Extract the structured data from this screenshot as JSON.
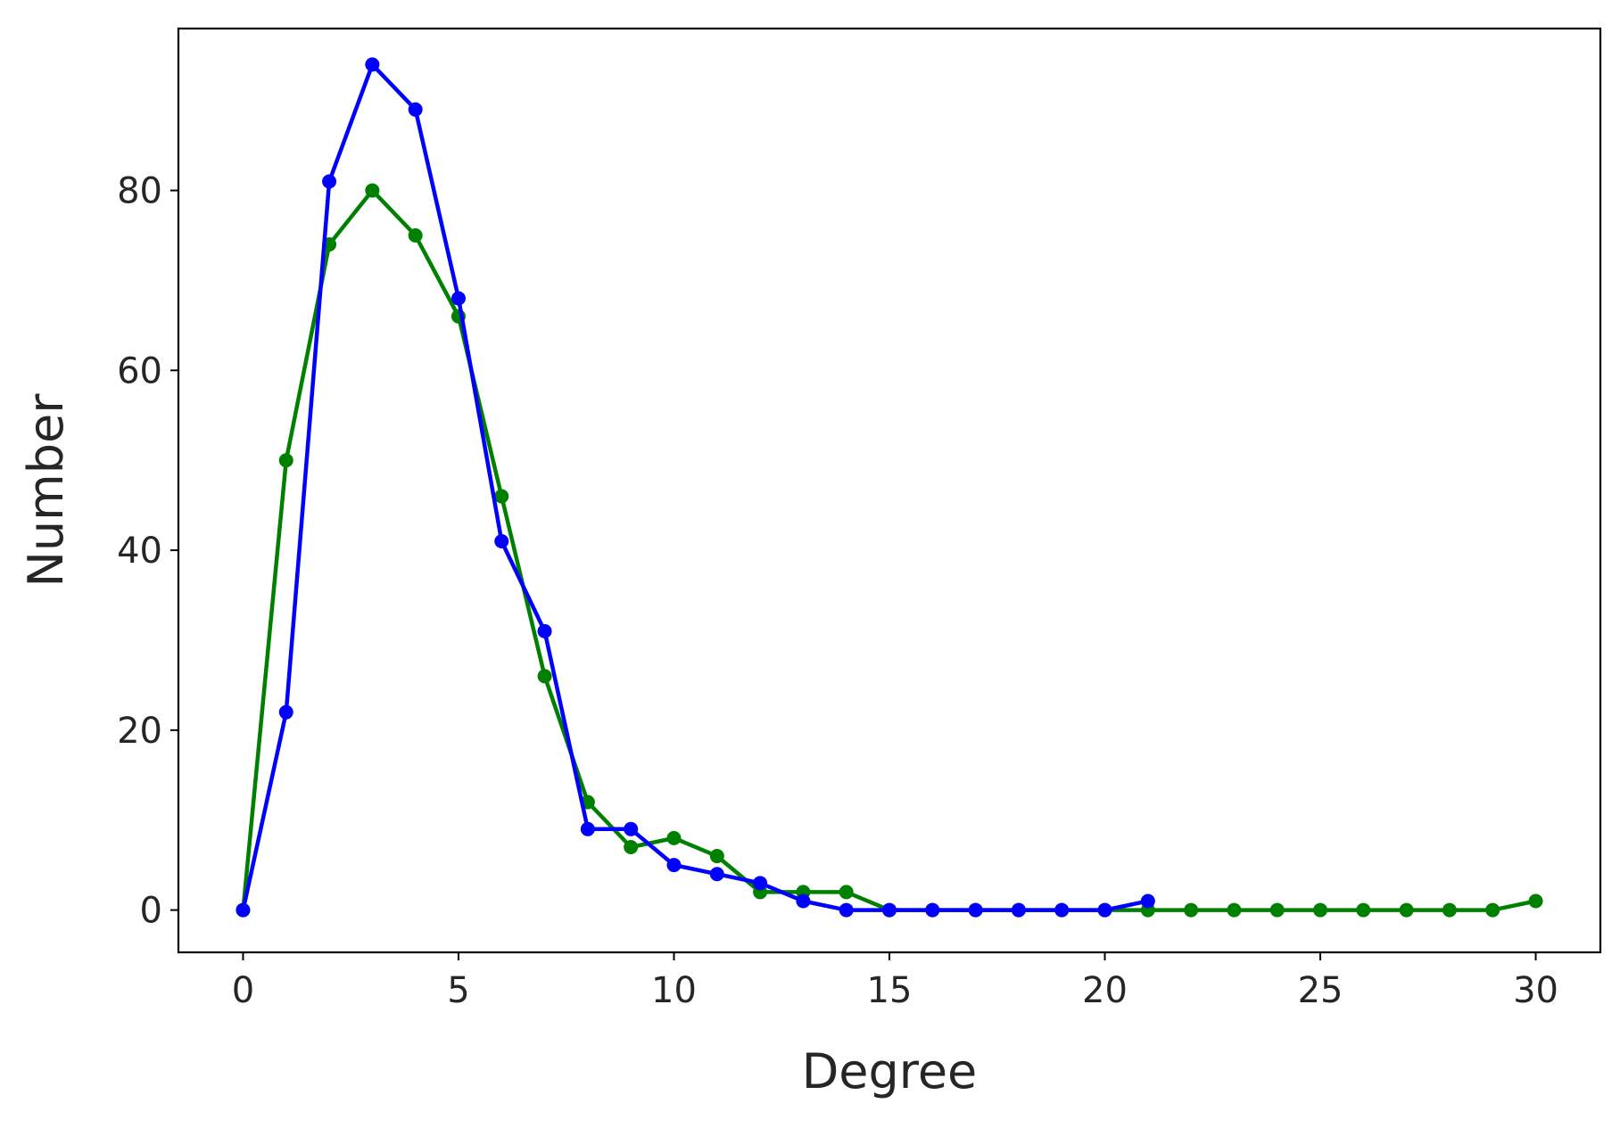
{
  "chart_data": {
    "type": "line",
    "title": "",
    "xlabel": "Degree",
    "ylabel": "Number",
    "xlim": [
      -1.5,
      31.5
    ],
    "ylim": [
      -4.7,
      98
    ],
    "grid": false,
    "legend": "none",
    "xticks": [
      0,
      5,
      10,
      15,
      20,
      25,
      30
    ],
    "yticks": [
      0,
      20,
      40,
      60,
      80
    ],
    "series": [
      {
        "color": "#008000",
        "marker": "circle",
        "x": [
          0,
          1,
          2,
          3,
          4,
          5,
          6,
          7,
          8,
          9,
          10,
          11,
          12,
          13,
          14,
          15,
          16,
          17,
          18,
          19,
          20,
          21,
          22,
          23,
          24,
          25,
          26,
          27,
          28,
          29,
          30
        ],
        "y": [
          0,
          50,
          74,
          80,
          75,
          66,
          46,
          26,
          12,
          7,
          8,
          6,
          2,
          2,
          2,
          0,
          0,
          0,
          0,
          0,
          0,
          0,
          0,
          0,
          0,
          0,
          0,
          0,
          0,
          0,
          1
        ]
      },
      {
        "color": "#0000ff",
        "marker": "circle",
        "x": [
          0,
          1,
          2,
          3,
          4,
          5,
          6,
          7,
          8,
          9,
          10,
          11,
          12,
          13,
          14,
          15,
          16,
          17,
          18,
          19,
          20,
          21
        ],
        "y": [
          0,
          22,
          81,
          94,
          89,
          68,
          41,
          31,
          9,
          9,
          5,
          4,
          3,
          1,
          0,
          0,
          0,
          0,
          0,
          0,
          0,
          1
        ]
      }
    ]
  }
}
